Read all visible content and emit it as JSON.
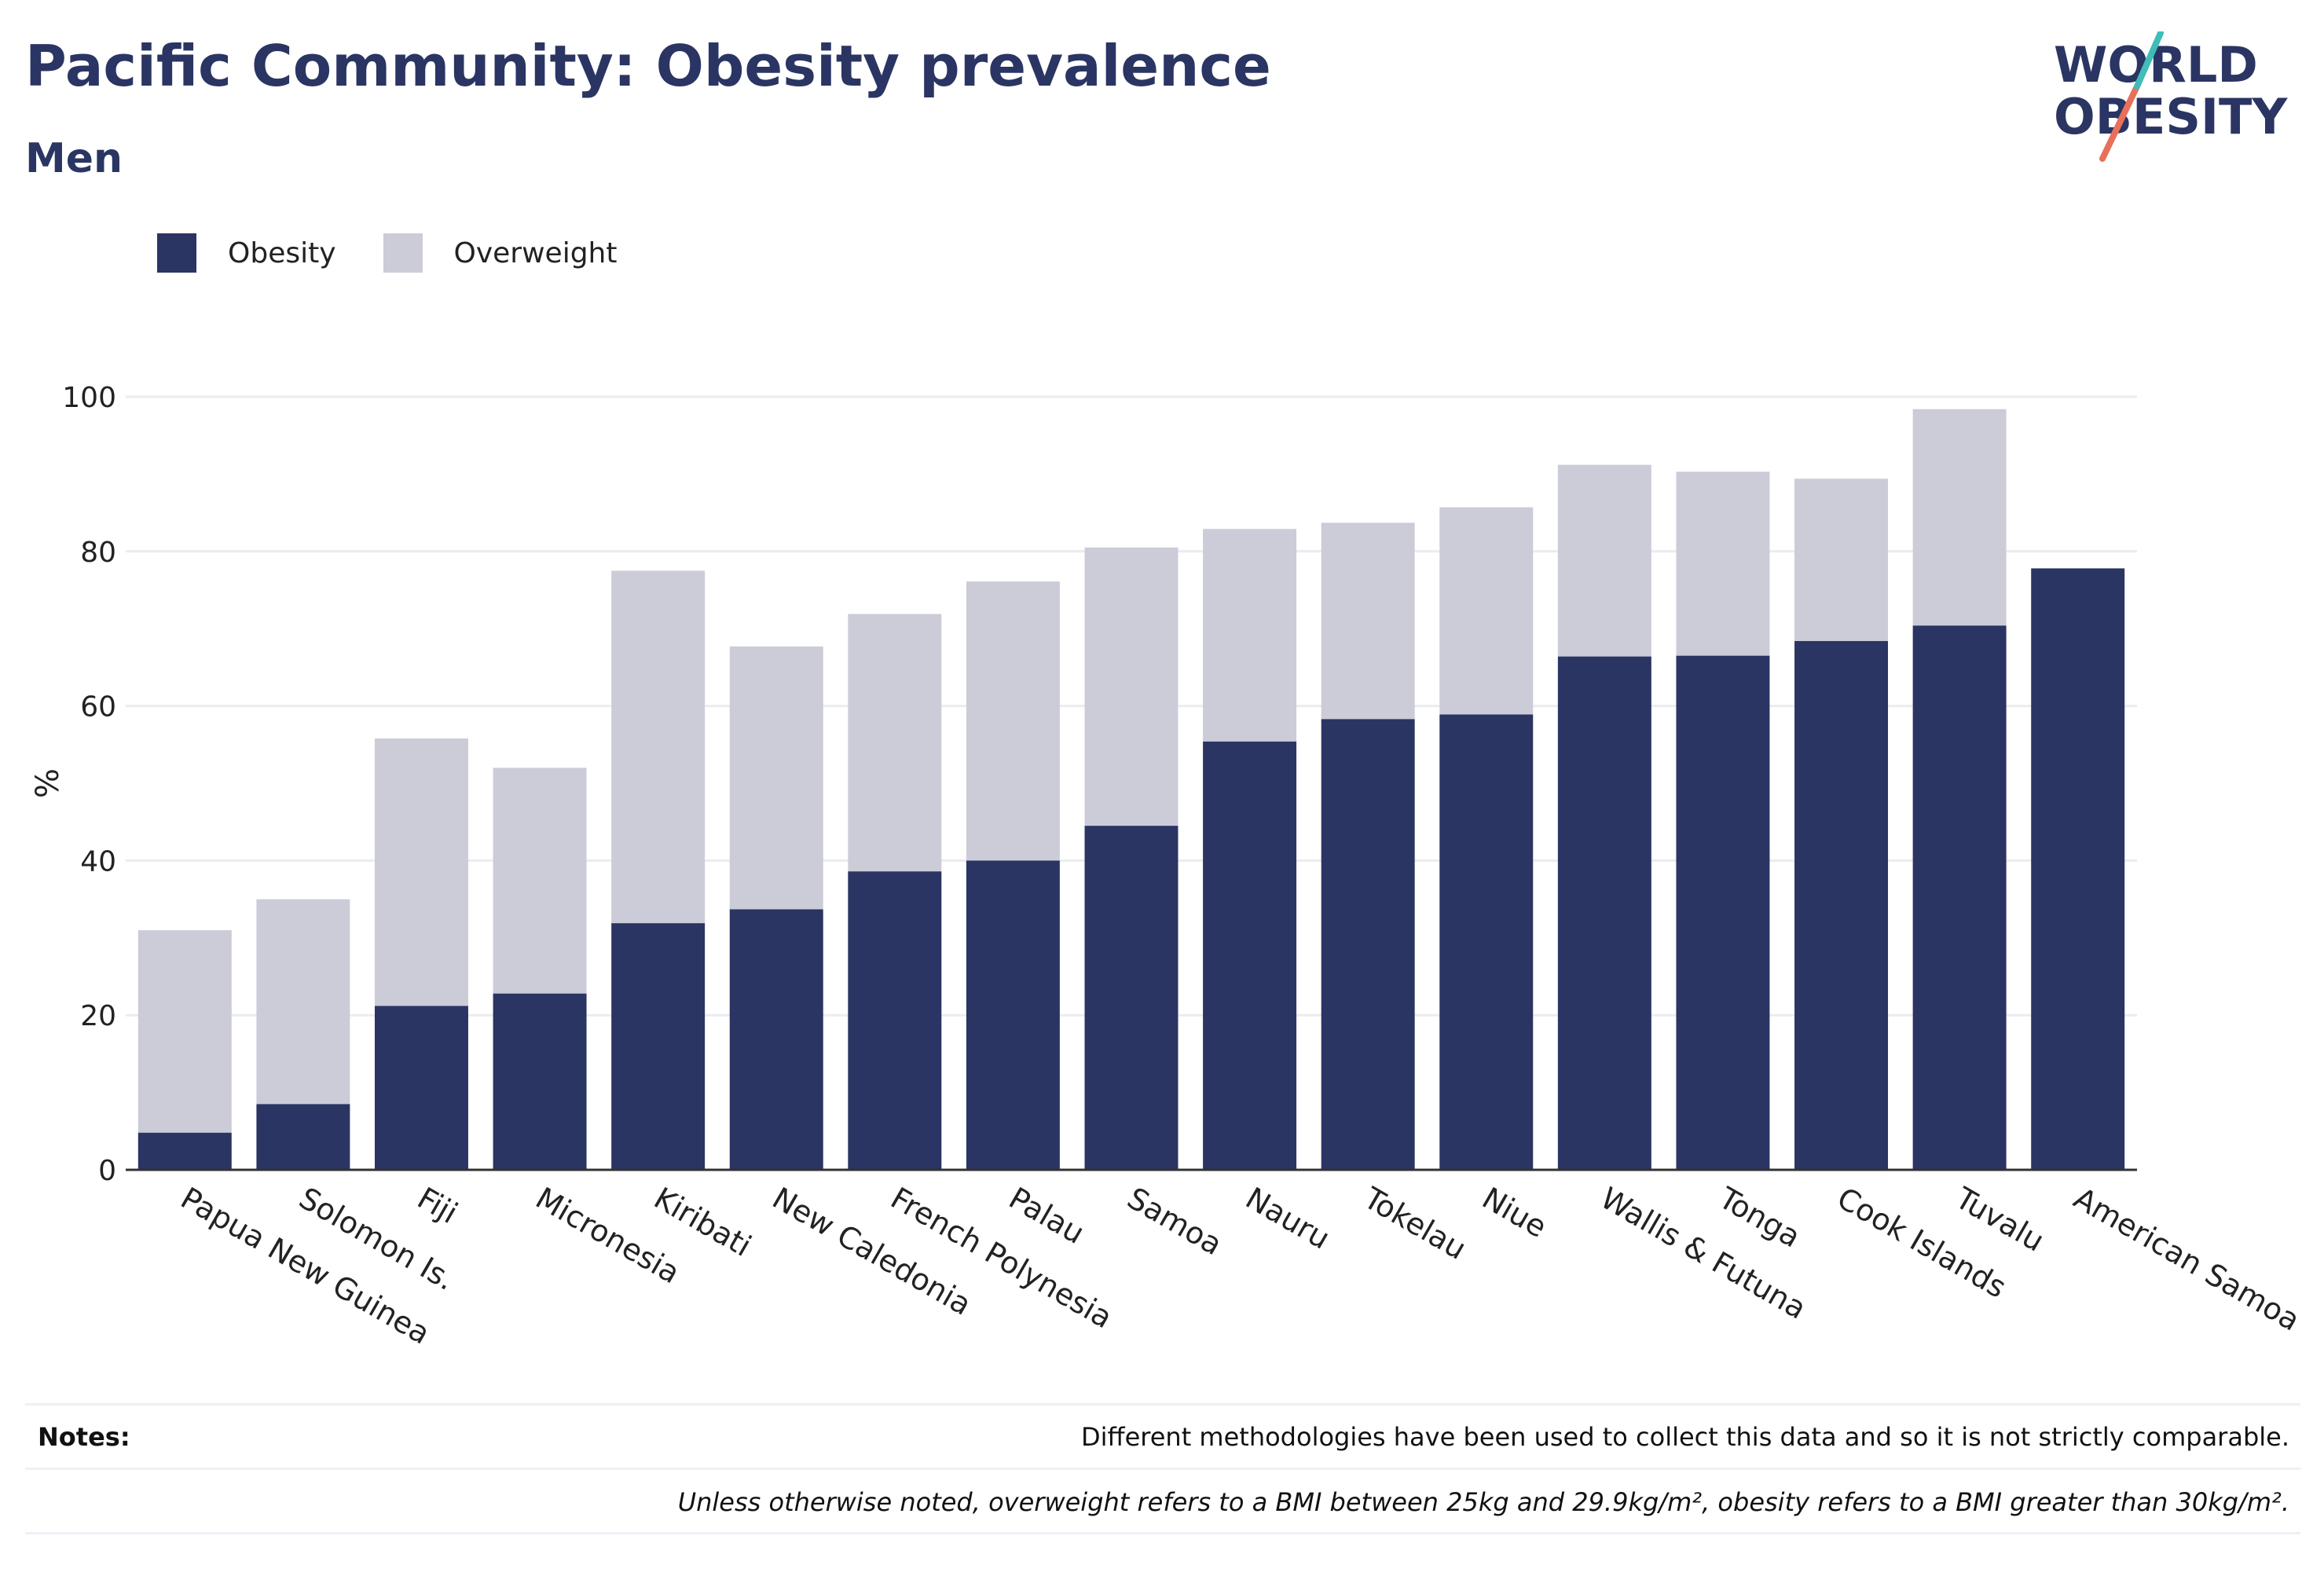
{
  "header": {
    "title": "Pacific Community: Obesity prevalence",
    "subtitle": "Men"
  },
  "logo": {
    "line1": "WORLD",
    "line2": "OBESITY"
  },
  "legend": {
    "items": [
      {
        "label": "Obesity",
        "color": "#2a3563"
      },
      {
        "label": "Overweight",
        "color": "#cbccd8"
      }
    ]
  },
  "notes": {
    "label": "Notes:",
    "line1": "Different methodologies have been used to collect this data and so it is not strictly comparable.",
    "line2": "Unless otherwise noted, overweight refers to a BMI between 25kg and 29.9kg/m², obesity refers to a BMI greater than 30kg/m²."
  },
  "chart_data": {
    "type": "bar",
    "stacked": true,
    "ylabel": "%",
    "ylim": [
      0,
      105
    ],
    "yticks": [
      0,
      20,
      40,
      60,
      80,
      100
    ],
    "grid": true,
    "legend_position": "top-left",
    "categories": [
      "Papua New Guinea",
      "Solomon Is.",
      "Fiji",
      "Micronesia",
      "Kiribati",
      "New Caledonia",
      "French Polynesia",
      "Palau",
      "Samoa",
      "Nauru",
      "Tokelau",
      "Niue",
      "Wallis & Futuna",
      "Tonga",
      "Cook Islands",
      "Tuvalu",
      "American Samoa"
    ],
    "series": [
      {
        "name": "Obesity",
        "color": "#2a3563",
        "values": [
          4.8,
          8.5,
          21.2,
          22.8,
          31.9,
          33.7,
          38.6,
          40.0,
          44.5,
          55.4,
          58.3,
          58.9,
          66.4,
          66.5,
          68.4,
          70.4,
          77.8
        ]
      },
      {
        "name": "Overweight",
        "color": "#cbccd8",
        "values": [
          26.2,
          26.5,
          34.6,
          29.2,
          45.6,
          34.0,
          33.3,
          36.1,
          36.0,
          27.5,
          25.4,
          26.8,
          24.8,
          23.8,
          21.0,
          28.0,
          0
        ]
      }
    ]
  }
}
